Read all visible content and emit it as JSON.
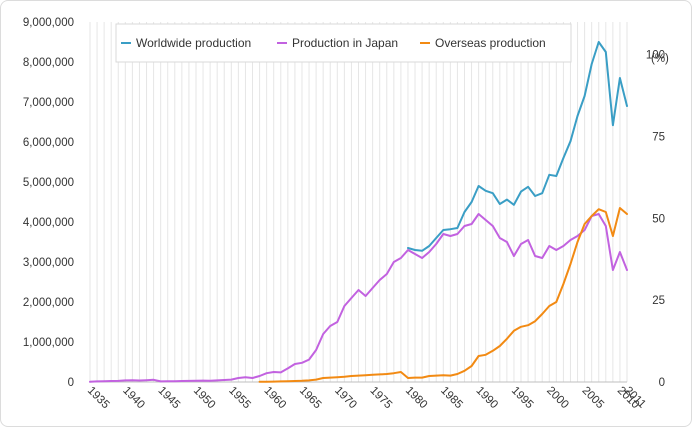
{
  "chart_data": {
    "type": "line",
    "title": "",
    "xlabel": "",
    "ylabel": "",
    "y2label": "(%)",
    "ylim": [
      0,
      9000000
    ],
    "y2lim": [
      0,
      110
    ],
    "xlim": [
      1935,
      2011
    ],
    "grid": "vertical, one line per year",
    "legend": "top, inside plot",
    "y_ticks": [
      "0",
      "1,000,000",
      "2,000,000",
      "3,000,000",
      "4,000,000",
      "5,000,000",
      "6,000,000",
      "7,000,000",
      "8,000,000",
      "9,000,000"
    ],
    "y2_ticks": [
      "0",
      "25",
      "50",
      "75",
      "100"
    ],
    "x_ticks": [
      "1935",
      "1940",
      "1945",
      "1950",
      "1955",
      "1960",
      "1965",
      "1970",
      "1975",
      "1980",
      "1985",
      "1990",
      "1995",
      "2000",
      "2005",
      "2010",
      "2011"
    ],
    "series": [
      {
        "name": "Worldwide production",
        "color": "#3a9ec5",
        "axis": "left",
        "x": [
          1980,
          1981,
          1982,
          1983,
          1984,
          1985,
          1986,
          1987,
          1988,
          1989,
          1990,
          1991,
          1992,
          1993,
          1994,
          1995,
          1996,
          1997,
          1998,
          1999,
          2000,
          2001,
          2002,
          2003,
          2004,
          2005,
          2006,
          2007,
          2008,
          2009,
          2010,
          2011
        ],
        "y": [
          3350000,
          3300000,
          3280000,
          3400000,
          3600000,
          3800000,
          3820000,
          3850000,
          4250000,
          4500000,
          4900000,
          4780000,
          4720000,
          4450000,
          4560000,
          4430000,
          4760000,
          4880000,
          4650000,
          4720000,
          5180000,
          5150000,
          5600000,
          6020000,
          6650000,
          7150000,
          7950000,
          8500000,
          8250000,
          6420000,
          7600000,
          6900000
        ]
      },
      {
        "name": "Production in Japan",
        "color": "#c262e0",
        "axis": "left",
        "x": [
          1935,
          1936,
          1937,
          1938,
          1939,
          1940,
          1941,
          1942,
          1943,
          1944,
          1945,
          1946,
          1947,
          1948,
          1949,
          1950,
          1951,
          1952,
          1953,
          1954,
          1955,
          1956,
          1957,
          1958,
          1959,
          1960,
          1961,
          1962,
          1963,
          1964,
          1965,
          1966,
          1967,
          1968,
          1969,
          1970,
          1971,
          1972,
          1973,
          1974,
          1975,
          1976,
          1977,
          1978,
          1979,
          1980,
          1981,
          1982,
          1983,
          1984,
          1985,
          1986,
          1987,
          1988,
          1989,
          1990,
          1991,
          1992,
          1993,
          1994,
          1995,
          1996,
          1997,
          1998,
          1999,
          2000,
          2001,
          2002,
          2003,
          2004,
          2005,
          2006,
          2007,
          2008,
          2009,
          2010,
          2011
        ],
        "y": [
          5000,
          15000,
          20000,
          25000,
          28000,
          40000,
          45000,
          38000,
          45000,
          55000,
          15000,
          18000,
          20000,
          24000,
          28000,
          30000,
          35000,
          30000,
          40000,
          50000,
          60000,
          100000,
          120000,
          100000,
          150000,
          220000,
          250000,
          240000,
          340000,
          450000,
          480000,
          560000,
          800000,
          1200000,
          1400000,
          1500000,
          1900000,
          2100000,
          2300000,
          2150000,
          2350000,
          2550000,
          2700000,
          3000000,
          3100000,
          3300000,
          3200000,
          3100000,
          3250000,
          3450000,
          3700000,
          3650000,
          3700000,
          3900000,
          3950000,
          4200000,
          4050000,
          3900000,
          3600000,
          3500000,
          3150000,
          3450000,
          3550000,
          3150000,
          3100000,
          3400000,
          3300000,
          3400000,
          3550000,
          3650000,
          3800000,
          4150000,
          4200000,
          3900000,
          2800000,
          3250000,
          2800000
        ]
      },
      {
        "name": "Overseas production",
        "color": "#f28a13",
        "axis": "left",
        "x": [
          1959,
          1960,
          1961,
          1962,
          1963,
          1964,
          1965,
          1966,
          1967,
          1968,
          1969,
          1970,
          1971,
          1972,
          1973,
          1974,
          1975,
          1976,
          1977,
          1978,
          1979,
          1980,
          1981,
          1982,
          1983,
          1984,
          1985,
          1986,
          1987,
          1988,
          1989,
          1990,
          1991,
          1992,
          1993,
          1994,
          1995,
          1996,
          1997,
          1998,
          1999,
          2000,
          2001,
          2002,
          2003,
          2004,
          2005,
          2006,
          2007,
          2008,
          2009,
          2010,
          2011
        ],
        "y": [
          5000,
          8000,
          10000,
          15000,
          20000,
          25000,
          30000,
          40000,
          60000,
          100000,
          110000,
          120000,
          130000,
          150000,
          160000,
          170000,
          180000,
          190000,
          200000,
          220000,
          250000,
          100000,
          110000,
          110000,
          150000,
          160000,
          170000,
          160000,
          200000,
          280000,
          400000,
          650000,
          680000,
          780000,
          900000,
          1080000,
          1280000,
          1380000,
          1420000,
          1520000,
          1700000,
          1900000,
          2000000,
          2450000,
          2950000,
          3500000,
          3950000,
          4150000,
          4320000,
          4250000,
          3650000,
          4350000,
          4200000
        ]
      }
    ]
  }
}
